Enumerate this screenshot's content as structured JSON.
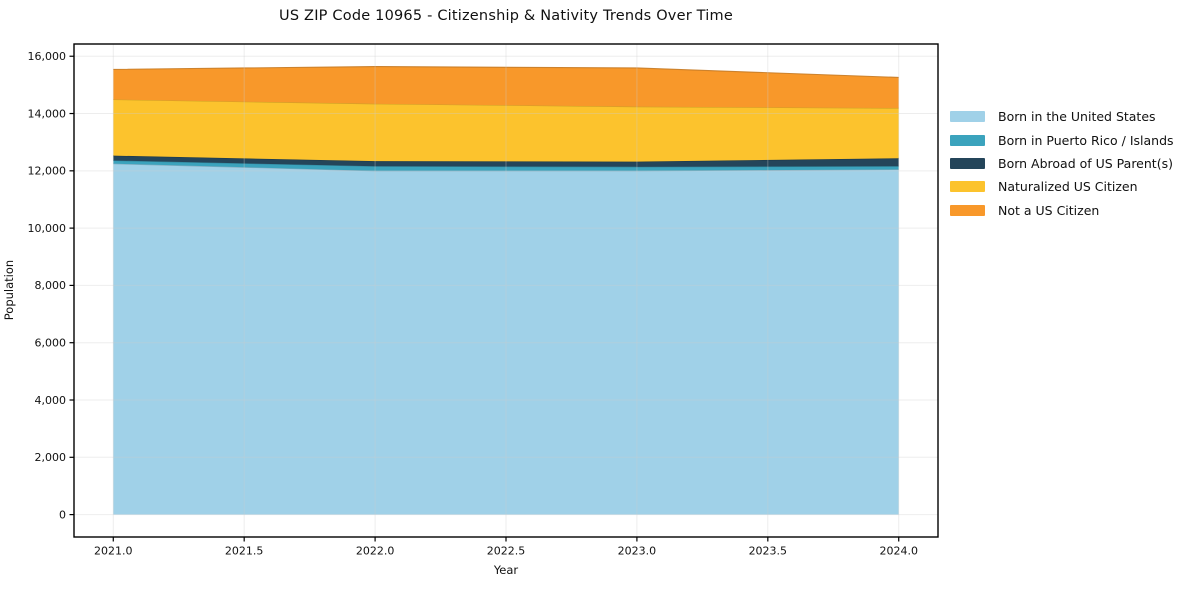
{
  "page": {
    "title": "US ZIP Code 10965 - Citizenship & Nativity Trends Over Time"
  },
  "chart_data": {
    "type": "area",
    "stacked": true,
    "title": "US ZIP Code 10965 - Citizenship & Nativity Trends Over Time",
    "xlabel": "Year",
    "ylabel": "Population",
    "x": [
      2021,
      2022,
      2023,
      2024
    ],
    "series": [
      {
        "name": "Born in the United States",
        "color": "#a0d1e8",
        "values": [
          12250,
          12000,
          12000,
          12050
        ]
      },
      {
        "name": "Born in Puerto Rico / Islands",
        "color": "#3ba3bd",
        "values": [
          110,
          160,
          140,
          110
        ]
      },
      {
        "name": "Born Abroad of US Parent(s)",
        "color": "#24455a",
        "values": [
          170,
          180,
          180,
          280
        ]
      },
      {
        "name": "Naturalized US Citizen",
        "color": "#fcc32d",
        "values": [
          1960,
          2000,
          1920,
          1750
        ]
      },
      {
        "name": "Not a US Citizen",
        "color": "#f8982a",
        "values": [
          1050,
          1300,
          1350,
          1070
        ]
      }
    ],
    "totals": [
      15540,
      15640,
      15590,
      15260
    ],
    "xlim": [
      2020.85,
      2024.15
    ],
    "ylim": [
      -782,
      16427
    ],
    "x_ticks": {
      "values": [
        2021,
        2021.5,
        2022,
        2022.5,
        2023,
        2023.5,
        2024
      ],
      "labels": [
        "2021.0",
        "2021.5",
        "2022.0",
        "2022.5",
        "2023.0",
        "2023.5",
        "2024.0"
      ]
    },
    "y_ticks": {
      "values": [
        0,
        2000,
        4000,
        6000,
        8000,
        10000,
        12000,
        14000,
        16000
      ],
      "labels": [
        "0",
        "2,000",
        "4,000",
        "6,000",
        "8,000",
        "10,000",
        "12,000",
        "14,000",
        "16,000"
      ]
    },
    "grid": true,
    "grid_color": "#cccccc",
    "frame_color": "#000000",
    "legend_position": "right"
  }
}
